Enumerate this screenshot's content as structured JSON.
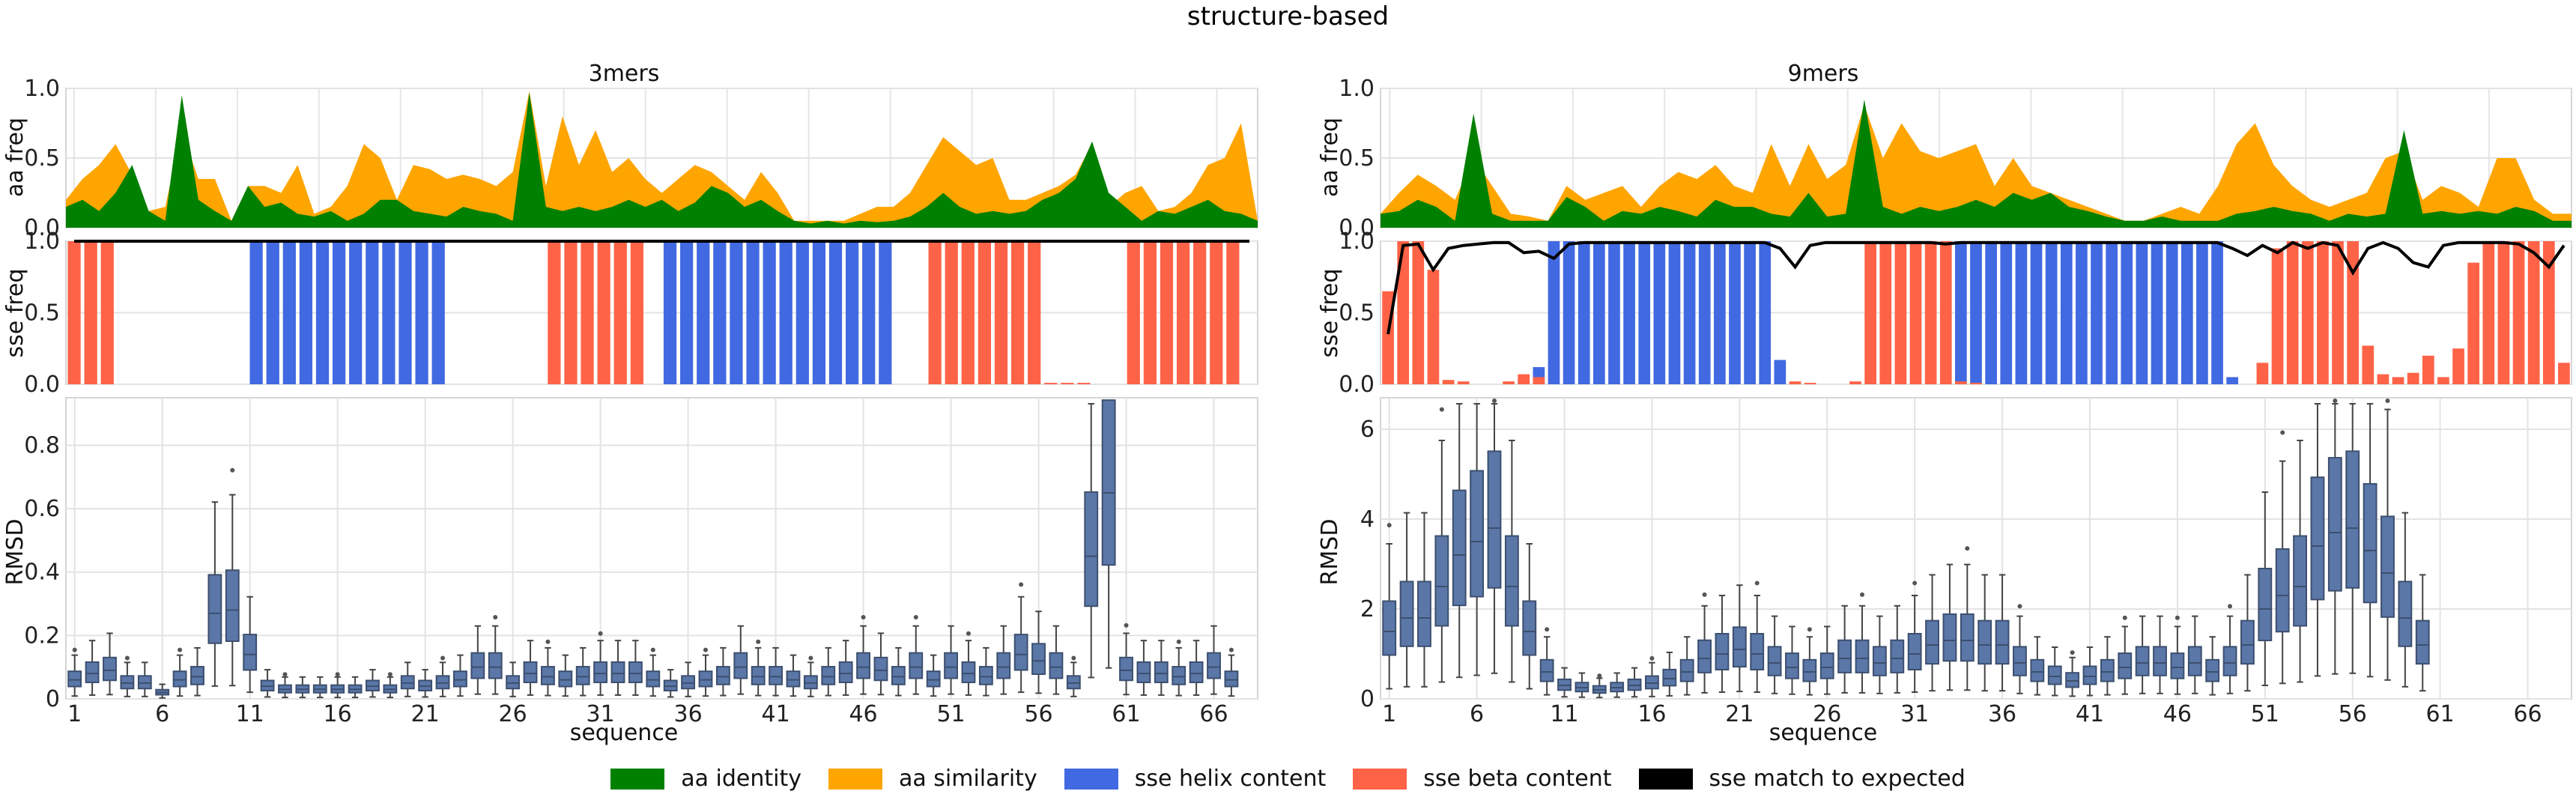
{
  "figure": {
    "title": "structure-based",
    "legend": [
      {
        "label": "aa identity",
        "color": "#008000"
      },
      {
        "label": "aa similarity",
        "color": "#ffa500"
      },
      {
        "label": "sse helix content",
        "color": "#4169e1"
      },
      {
        "label": "sse beta content",
        "color": "#ff6347"
      },
      {
        "label": "sse match to expected",
        "color": "#000000"
      }
    ],
    "colors": {
      "identity": "#008000",
      "similarity": "#ffa500",
      "helix": "#4169e1",
      "beta": "#ff6347",
      "match": "#000000",
      "box": "#5a77a8"
    }
  },
  "chart_data": [
    {
      "type": "area",
      "panel": "3mers",
      "title": "3mers",
      "ylabel": "aa freq",
      "ylim": [
        0,
        1.0
      ],
      "yticks": [
        "0.0",
        "0.5",
        "1.0"
      ],
      "series": [
        {
          "name": "aa identity",
          "values": [
            0.15,
            0.2,
            0.12,
            0.25,
            0.45,
            0.12,
            0.05,
            0.95,
            0.2,
            0.12,
            0.05,
            0.3,
            0.15,
            0.18,
            0.1,
            0.08,
            0.12,
            0.05,
            0.1,
            0.2,
            0.2,
            0.12,
            0.1,
            0.08,
            0.15,
            0.12,
            0.1,
            0.05,
            0.97,
            0.15,
            0.12,
            0.15,
            0.12,
            0.15,
            0.2,
            0.15,
            0.2,
            0.12,
            0.18,
            0.3,
            0.25,
            0.15,
            0.2,
            0.12,
            0.05,
            0.03,
            0.05,
            0.03,
            0.05,
            0.04,
            0.05,
            0.08,
            0.15,
            0.25,
            0.15,
            0.1,
            0.12,
            0.1,
            0.12,
            0.2,
            0.25,
            0.35,
            0.62,
            0.25,
            0.15,
            0.05,
            0.12,
            0.1,
            0.15,
            0.2,
            0.12,
            0.1,
            0.05
          ]
        },
        {
          "name": "aa similarity",
          "values": [
            0.2,
            0.35,
            0.45,
            0.6,
            0.38,
            0.12,
            0.15,
            0.7,
            0.35,
            0.35,
            0.05,
            0.3,
            0.3,
            0.25,
            0.45,
            0.1,
            0.15,
            0.3,
            0.6,
            0.5,
            0.2,
            0.45,
            0.42,
            0.35,
            0.38,
            0.35,
            0.3,
            0.4,
            0.98,
            0.3,
            0.8,
            0.45,
            0.7,
            0.4,
            0.5,
            0.35,
            0.25,
            0.35,
            0.45,
            0.4,
            0.3,
            0.2,
            0.4,
            0.25,
            0.05,
            0.05,
            0.05,
            0.05,
            0.1,
            0.15,
            0.15,
            0.25,
            0.45,
            0.65,
            0.55,
            0.45,
            0.5,
            0.2,
            0.2,
            0.25,
            0.3,
            0.38,
            0.6,
            0.15,
            0.25,
            0.3,
            0.12,
            0.15,
            0.25,
            0.45,
            0.5,
            0.75,
            0.05
          ]
        }
      ]
    },
    {
      "type": "bar",
      "panel": "3mers",
      "ylabel": "sse freq",
      "ylim": [
        0,
        1.0
      ],
      "yticks": [
        "0.0",
        "0.5",
        "1.0"
      ],
      "series": [
        {
          "name": "sse helix content",
          "values": [
            0,
            0,
            0,
            0,
            0,
            0,
            0,
            0,
            0,
            0,
            0,
            1,
            1,
            1,
            1,
            1,
            1,
            1,
            1,
            1,
            1,
            1,
            1,
            0,
            0,
            0,
            0,
            0,
            0,
            0,
            0,
            0,
            0,
            0,
            0,
            0,
            1,
            1,
            1,
            1,
            1,
            1,
            1,
            1,
            1,
            1,
            1,
            1,
            1,
            1,
            0,
            0,
            0,
            0,
            0,
            0,
            0,
            0,
            0,
            0,
            0,
            0,
            0,
            0,
            0,
            0,
            0,
            0,
            0,
            0,
            0,
            0
          ]
        },
        {
          "name": "sse beta content",
          "values": [
            1,
            1,
            1,
            0,
            0,
            0,
            0,
            0,
            0,
            0,
            0,
            0,
            0,
            0,
            0,
            0,
            0,
            0,
            0,
            0,
            0,
            0,
            0,
            0,
            0,
            0,
            0,
            0,
            0,
            1,
            1,
            1,
            1,
            1,
            1,
            0,
            0,
            0,
            0,
            0,
            0,
            0,
            0,
            0,
            0,
            0,
            0,
            0,
            0,
            0,
            0,
            0,
            1,
            1,
            1,
            1,
            1,
            1,
            1,
            0.01,
            0.01,
            0.01,
            0,
            0,
            1,
            1,
            1,
            1,
            1,
            1,
            1,
            0
          ]
        },
        {
          "name": "sse match to expected",
          "values": [
            1,
            1,
            1,
            1,
            1,
            1,
            1,
            1,
            1,
            1,
            1,
            1,
            1,
            1,
            1,
            1,
            1,
            1,
            1,
            1,
            1,
            1,
            1,
            1,
            1,
            1,
            1,
            1,
            1,
            1,
            1,
            1,
            1,
            1,
            1,
            1,
            1,
            1,
            1,
            1,
            1,
            1,
            1,
            1,
            1,
            1,
            1,
            1,
            1,
            1,
            1,
            1,
            1,
            1,
            1,
            1,
            1,
            1,
            1,
            1,
            1,
            1,
            1,
            1,
            1,
            1,
            1,
            1,
            1,
            1,
            1,
            1
          ]
        }
      ]
    },
    {
      "type": "box",
      "panel": "3mers",
      "xlabel": "sequence",
      "ylabel": "RMSD",
      "ylim": [
        0,
        0.95
      ],
      "yticks": [
        "0",
        "0.2",
        "0.4",
        "0.6",
        "0.8"
      ],
      "xticks": [
        "1",
        "6",
        "11",
        "16",
        "21",
        "26",
        "31",
        "36",
        "41",
        "46",
        "51",
        "56",
        "61",
        "66"
      ],
      "medians": [
        0.06,
        0.08,
        0.09,
        0.05,
        0.05,
        0.02,
        0.06,
        0.07,
        0.27,
        0.28,
        0.14,
        0.04,
        0.03,
        0.03,
        0.03,
        0.03,
        0.03,
        0.04,
        0.03,
        0.05,
        0.04,
        0.05,
        0.06,
        0.1,
        0.1,
        0.05,
        0.08,
        0.07,
        0.06,
        0.07,
        0.08,
        0.08,
        0.08,
        0.06,
        0.04,
        0.05,
        0.06,
        0.07,
        0.1,
        0.07,
        0.07,
        0.06,
        0.05,
        0.07,
        0.08,
        0.1,
        0.09,
        0.07,
        0.1,
        0.06,
        0.1,
        0.08,
        0.07,
        0.1,
        0.14,
        0.12,
        0.1,
        0.05,
        0.45,
        0.65,
        0.09,
        0.08,
        0.08,
        0.07,
        0.08,
        0.1,
        0.06
      ]
    },
    {
      "type": "area",
      "panel": "9mers",
      "title": "9mers",
      "ylabel": "aa freq",
      "ylim": [
        0,
        1.0
      ],
      "yticks": [
        "0.0",
        "0.5",
        "1.0"
      ],
      "series": [
        {
          "name": "aa identity",
          "values": [
            0.1,
            0.12,
            0.2,
            0.15,
            0.05,
            0.82,
            0.1,
            0.05,
            0.05,
            0.05,
            0.22,
            0.15,
            0.05,
            0.12,
            0.1,
            0.15,
            0.12,
            0.08,
            0.2,
            0.15,
            0.15,
            0.1,
            0.08,
            0.25,
            0.08,
            0.1,
            0.92,
            0.15,
            0.1,
            0.15,
            0.12,
            0.15,
            0.2,
            0.15,
            0.25,
            0.2,
            0.25,
            0.15,
            0.12,
            0.08,
            0.05,
            0.05,
            0.08,
            0.05,
            0.05,
            0.05,
            0.1,
            0.12,
            0.15,
            0.12,
            0.1,
            0.05,
            0.1,
            0.08,
            0.1,
            0.7,
            0.1,
            0.12,
            0.1,
            0.12,
            0.1,
            0.15,
            0.12,
            0.05,
            0.05
          ]
        },
        {
          "name": "aa similarity",
          "values": [
            0.1,
            0.25,
            0.38,
            0.3,
            0.2,
            0.5,
            0.3,
            0.1,
            0.08,
            0.05,
            0.3,
            0.2,
            0.25,
            0.3,
            0.15,
            0.3,
            0.4,
            0.35,
            0.45,
            0.3,
            0.25,
            0.6,
            0.3,
            0.6,
            0.35,
            0.45,
            0.88,
            0.5,
            0.75,
            0.55,
            0.5,
            0.55,
            0.6,
            0.3,
            0.5,
            0.3,
            0.25,
            0.2,
            0.15,
            0.1,
            0.05,
            0.05,
            0.1,
            0.15,
            0.1,
            0.3,
            0.6,
            0.75,
            0.45,
            0.3,
            0.2,
            0.15,
            0.2,
            0.25,
            0.5,
            0.55,
            0.2,
            0.3,
            0.25,
            0.15,
            0.5,
            0.5,
            0.2,
            0.1,
            0.1
          ]
        }
      ]
    },
    {
      "type": "bar",
      "panel": "9mers",
      "ylabel": "sse freq",
      "ylim": [
        0,
        1.0
      ],
      "yticks": [
        "0.0",
        "0.5",
        "1.0"
      ],
      "series": [
        {
          "name": "sse helix content",
          "values": [
            0,
            0,
            0,
            0.01,
            0,
            0,
            0,
            0,
            0,
            0.05,
            0.12,
            1,
            1,
            1,
            1,
            1,
            1,
            1,
            1,
            1,
            1,
            1,
            1,
            1,
            1,
            1,
            0.17,
            0,
            0,
            0,
            0,
            0,
            0,
            0,
            0,
            0,
            0,
            0,
            1,
            1,
            1,
            1,
            1,
            1,
            1,
            1,
            1,
            1,
            1,
            1,
            1,
            1,
            1,
            1,
            1,
            1,
            0.05,
            0,
            0,
            0,
            0,
            0,
            0,
            0,
            0,
            0,
            0,
            0,
            0,
            0,
            0,
            0,
            0,
            0,
            0,
            0,
            0,
            0,
            0
          ]
        },
        {
          "name": "sse beta content",
          "values": [
            0.65,
            1,
            1,
            0.8,
            0.03,
            0.02,
            0,
            0,
            0.02,
            0.07,
            0.05,
            0,
            0,
            0,
            0,
            0,
            0,
            0,
            0,
            0,
            0,
            0,
            0,
            0,
            0,
            0,
            0,
            0.02,
            0.01,
            0,
            0,
            0.02,
            1,
            1,
            1,
            1,
            1,
            1,
            0.02,
            0.01,
            0,
            0,
            0,
            0,
            0,
            0,
            0,
            0,
            0,
            0,
            0,
            0,
            0,
            0,
            0,
            0,
            0,
            0,
            0.15,
            0.95,
            1,
            1,
            1,
            1,
            1,
            0.27,
            0.07,
            0.05,
            0.08,
            0.2,
            0.05,
            0.25,
            0.85,
            1,
            1,
            1,
            1,
            1,
            0.15
          ]
        },
        {
          "name": "sse match to expected",
          "values": [
            0.35,
            0.97,
            0.98,
            0.8,
            0.95,
            0.97,
            0.98,
            0.99,
            0.99,
            0.92,
            0.93,
            0.88,
            0.98,
            0.99,
            0.99,
            0.99,
            0.99,
            0.99,
            0.99,
            0.99,
            0.99,
            0.99,
            0.99,
            0.99,
            0.99,
            0.99,
            0.95,
            0.82,
            0.97,
            0.99,
            0.99,
            0.99,
            0.99,
            0.99,
            0.99,
            0.99,
            0.99,
            0.98,
            0.99,
            0.99,
            0.99,
            0.99,
            0.99,
            0.99,
            0.99,
            0.99,
            0.99,
            0.99,
            0.99,
            0.99,
            0.99,
            0.99,
            0.99,
            0.99,
            0.99,
            0.99,
            0.95,
            0.9,
            0.97,
            0.92,
            0.99,
            0.95,
            0.99,
            0.97,
            0.78,
            0.95,
            0.99,
            0.95,
            0.85,
            0.82,
            0.97,
            0.99,
            0.99,
            0.99,
            0.99,
            0.98,
            0.92,
            0.82,
            0.97
          ]
        }
      ]
    },
    {
      "type": "box",
      "panel": "9mers",
      "xlabel": "sequence",
      "ylabel": "RMSD",
      "ylim": [
        0,
        6.7
      ],
      "yticks": [
        "0",
        "2",
        "4",
        "6"
      ],
      "xticks": [
        "1",
        "6",
        "11",
        "16",
        "21",
        "26",
        "31",
        "36",
        "41",
        "46",
        "51",
        "56",
        "61",
        "66"
      ],
      "medians": [
        1.5,
        1.8,
        1.8,
        2.5,
        3.2,
        3.5,
        3.8,
        2.5,
        1.5,
        0.6,
        0.3,
        0.25,
        0.2,
        0.25,
        0.3,
        0.35,
        0.45,
        0.6,
        0.9,
        1.0,
        1.1,
        1.0,
        0.8,
        0.7,
        0.6,
        0.7,
        0.9,
        0.9,
        0.8,
        0.9,
        1.0,
        1.2,
        1.3,
        1.3,
        1.2,
        1.2,
        0.8,
        0.6,
        0.5,
        0.4,
        0.5,
        0.6,
        0.7,
        0.8,
        0.8,
        0.7,
        0.8,
        0.6,
        0.8,
        1.2,
        2.0,
        2.3,
        2.5,
        3.4,
        3.7,
        3.8,
        3.3,
        2.8,
        1.8,
        1.2
      ]
    }
  ]
}
